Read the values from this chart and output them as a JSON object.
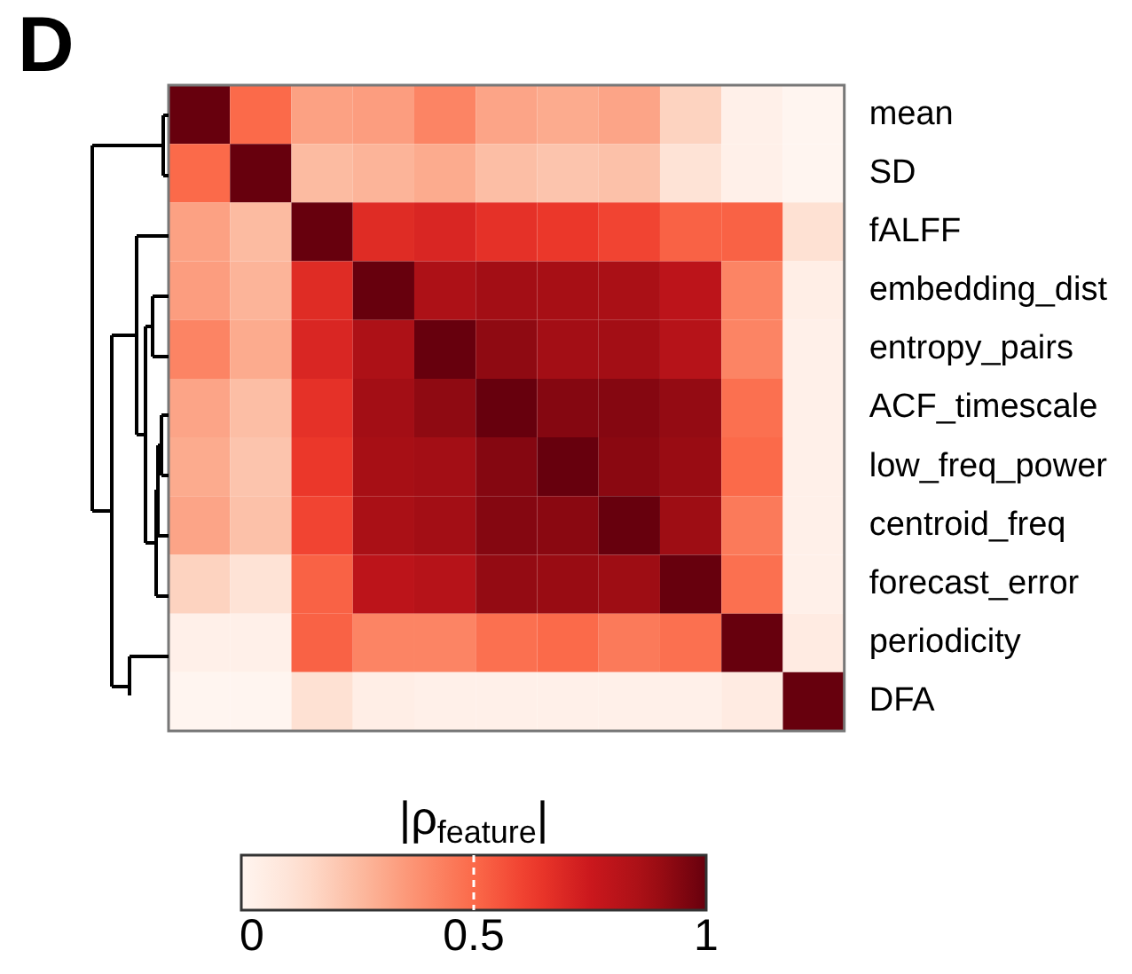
{
  "chart_data": {
    "type": "heatmap",
    "title": "D",
    "clabel": "|ρ$_{feature}$|",
    "categories": [
      null,
      null,
      null,
      null,
      null,
      null,
      null,
      null,
      null,
      null,
      null
    ],
    "y_categories": [
      "mean",
      "SD",
      "fALFF",
      "embedding_dist",
      "entropy_pairs",
      "ACF_timescale",
      "low_freq_power",
      "centroid_freq",
      "forecast_error",
      "periodicity",
      "DFA"
    ],
    "cells": [
      [
        1,
        0.5,
        0.33,
        0.34,
        0.42,
        0.32,
        0.3,
        0.32,
        0.17,
        0.03,
        0.0
      ],
      [
        0.5,
        1,
        0.25,
        0.27,
        0.3,
        0.24,
        0.22,
        0.23,
        0.11,
        0.03,
        0.0
      ],
      [
        0.33,
        0.25,
        1,
        0.68,
        0.7,
        0.66,
        0.64,
        0.6,
        0.52,
        0.52,
        0.12
      ],
      [
        0.34,
        0.27,
        0.68,
        1,
        0.85,
        0.88,
        0.87,
        0.86,
        0.8,
        0.42,
        0.04
      ],
      [
        0.42,
        0.3,
        0.7,
        0.85,
        1,
        0.92,
        0.88,
        0.88,
        0.82,
        0.42,
        0.03
      ],
      [
        0.32,
        0.24,
        0.66,
        0.88,
        0.92,
        1,
        0.94,
        0.94,
        0.91,
        0.48,
        0.03
      ],
      [
        0.3,
        0.22,
        0.64,
        0.87,
        0.88,
        0.94,
        1,
        0.93,
        0.9,
        0.5,
        0.03
      ],
      [
        0.32,
        0.23,
        0.6,
        0.86,
        0.88,
        0.94,
        0.93,
        1,
        0.89,
        0.45,
        0.03
      ],
      [
        0.17,
        0.11,
        0.52,
        0.8,
        0.82,
        0.91,
        0.9,
        0.89,
        1,
        0.48,
        0.03
      ],
      [
        0.03,
        0.03,
        0.52,
        0.42,
        0.42,
        0.48,
        0.5,
        0.45,
        0.48,
        1,
        0.06
      ],
      [
        0.0,
        0.0,
        0.12,
        0.04,
        0.03,
        0.03,
        0.03,
        0.03,
        0.03,
        0.06,
        1
      ]
    ],
    "clim": [
      0,
      1
    ],
    "cticks": [
      0,
      0.5,
      1
    ],
    "tick_labels": "y"
  }
}
